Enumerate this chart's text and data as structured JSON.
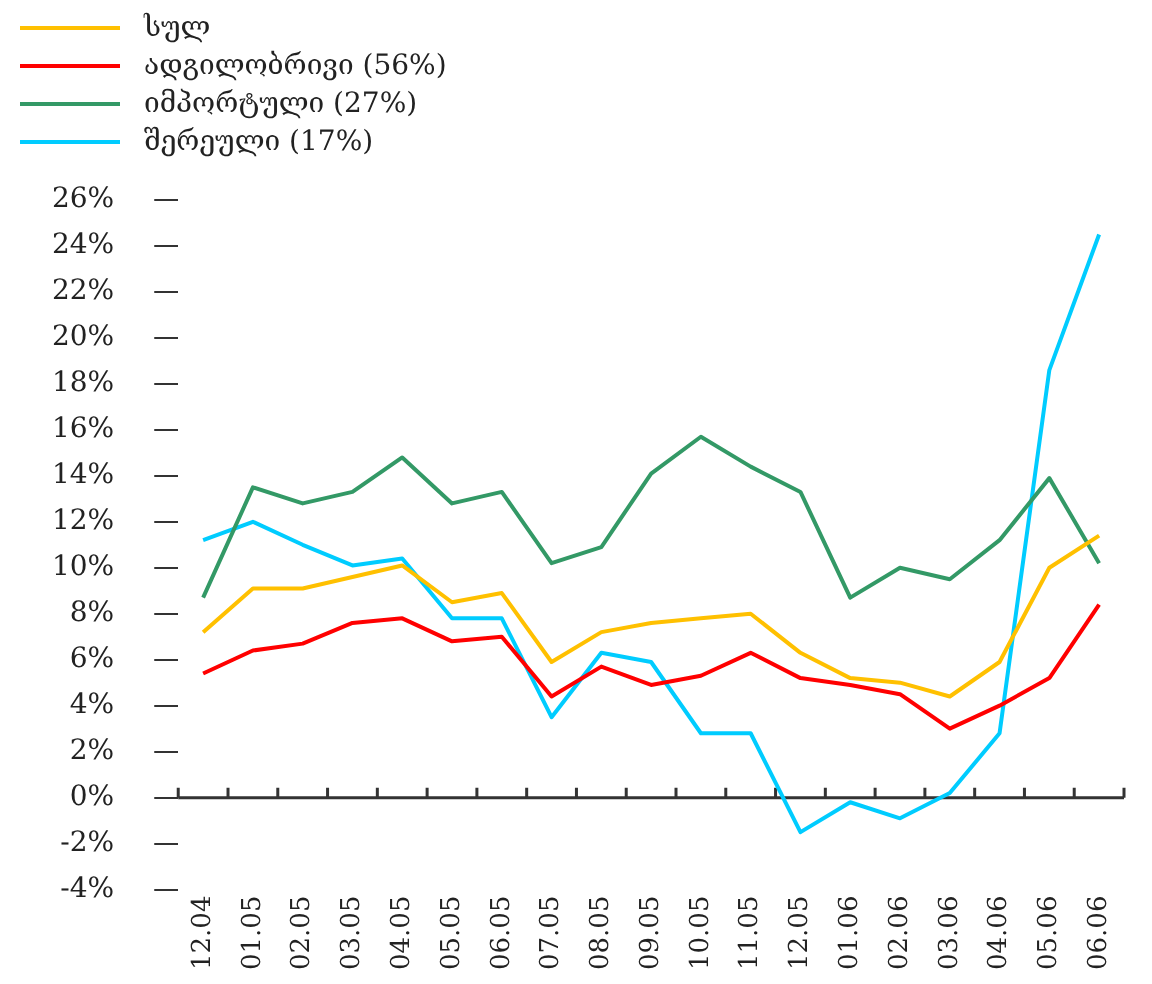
{
  "chart_data": {
    "type": "line",
    "legend": "top left",
    "grid": false,
    "categories": [
      "12.04",
      "01.05",
      "02.05",
      "03.05",
      "04.05",
      "05.05",
      "06.05",
      "07.05",
      "08.05",
      "09.05",
      "10.05",
      "11.05",
      "12.05",
      "01.06",
      "02.06",
      "03.06",
      "04.06",
      "05.06",
      "06.06"
    ],
    "ylim": [
      -4,
      26
    ],
    "yticks": [
      {
        "value": -4,
        "label": "-4%"
      },
      {
        "value": -2,
        "label": "-2%"
      },
      {
        "value": 0,
        "label": "0%"
      },
      {
        "value": 2,
        "label": "2%"
      },
      {
        "value": 4,
        "label": "4%"
      },
      {
        "value": 6,
        "label": "6%"
      },
      {
        "value": 8,
        "label": "8%"
      },
      {
        "value": 10,
        "label": "10%"
      },
      {
        "value": 12,
        "label": "12%"
      },
      {
        "value": 14,
        "label": "14%"
      },
      {
        "value": 16,
        "label": "16%"
      },
      {
        "value": 18,
        "label": "18%"
      },
      {
        "value": 20,
        "label": "20%"
      },
      {
        "value": 22,
        "label": "22%"
      },
      {
        "value": 24,
        "label": "24%"
      },
      {
        "value": 26,
        "label": "26%"
      }
    ],
    "ref_lines": [
      {
        "axis": "y",
        "value": 0,
        "color": "#333333"
      }
    ],
    "series": [
      {
        "name": "სულ",
        "color": "#ffc000",
        "values": [
          7.2,
          9.1,
          9.1,
          9.6,
          10.1,
          8.5,
          8.9,
          5.9,
          7.2,
          7.6,
          7.8,
          8.0,
          6.3,
          5.2,
          5.0,
          4.4,
          5.9,
          10.0,
          11.4
        ]
      },
      {
        "name": "ადგილობრივი (56%)",
        "color": "#ff0000",
        "values": [
          5.4,
          6.4,
          6.7,
          7.6,
          7.8,
          6.8,
          7.0,
          4.4,
          5.7,
          4.9,
          5.3,
          6.3,
          5.2,
          4.9,
          4.5,
          3.0,
          4.0,
          5.2,
          8.4
        ]
      },
      {
        "name": "იმპორტული (27%)",
        "color": "#339966",
        "values": [
          8.7,
          13.5,
          12.8,
          13.3,
          14.8,
          12.8,
          13.3,
          10.2,
          10.9,
          14.1,
          15.7,
          14.4,
          13.3,
          8.7,
          10.0,
          9.5,
          11.2,
          13.9,
          10.2
        ]
      },
      {
        "name": "შერეული (17%)",
        "color": "#00ccff",
        "values": [
          11.2,
          12.0,
          11.0,
          10.1,
          10.4,
          7.8,
          7.8,
          3.5,
          6.3,
          5.9,
          2.8,
          2.8,
          -1.5,
          -0.2,
          -0.9,
          0.2,
          2.8,
          18.6,
          24.5
        ]
      }
    ]
  }
}
